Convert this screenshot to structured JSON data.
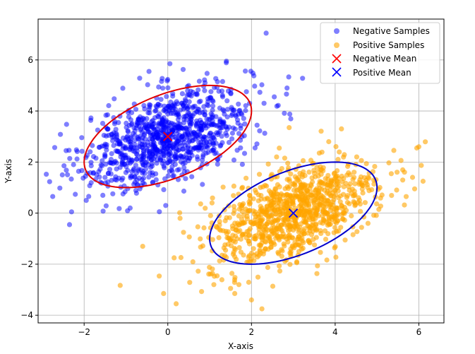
{
  "chart_data": {
    "type": "scatter",
    "title": "",
    "xlabel": "X-axis",
    "ylabel": "Y-axis",
    "xlim": [
      -3.1,
      6.6
    ],
    "ylim": [
      -4.3,
      7.6
    ],
    "xticks": [
      -2,
      0,
      2,
      4,
      6
    ],
    "yticks": [
      -4,
      -2,
      0,
      2,
      4,
      6
    ],
    "xtick_labels": [
      "−2",
      "0",
      "2",
      "4",
      "6"
    ],
    "ytick_labels": [
      "−4",
      "−2",
      "0",
      "2",
      "4",
      "6"
    ],
    "grid": true,
    "legend_position": "top-right",
    "series": [
      {
        "name": "Negative Samples",
        "marker": "circle",
        "color": "#0000ff",
        "alpha": 0.5,
        "distribution": {
          "mean": [
            0,
            3
          ],
          "cov": [
            [
              1,
              0.5
            ],
            [
              0.5,
              1
            ]
          ],
          "n": 1000
        },
        "outliers": [
          [
            2.35,
            7.05
          ],
          [
            1.4,
            5.95
          ],
          [
            -0.45,
            5.55
          ],
          [
            0.05,
            5.85
          ],
          [
            -2.35,
            -0.45
          ],
          [
            -2.3,
            0.05
          ],
          [
            -2.75,
            0.65
          ],
          [
            -0.05,
            0.3
          ],
          [
            2.85,
            4.9
          ],
          [
            -1.95,
            0.5
          ],
          [
            2.3,
            4.3
          ],
          [
            -0.9,
            0.2
          ]
        ]
      },
      {
        "name": "Positive Samples",
        "marker": "circle",
        "color": "#ffa500",
        "alpha": 0.6,
        "distribution": {
          "mean": [
            3,
            0
          ],
          "cov": [
            [
              1,
              0.5
            ],
            [
              0.5,
              1
            ]
          ],
          "n": 1000
        },
        "outliers": [
          [
            -0.1,
            -3.15
          ],
          [
            0.2,
            -3.55
          ],
          [
            2.25,
            -3.75
          ],
          [
            2.0,
            -3.4
          ],
          [
            -0.6,
            -1.3
          ],
          [
            0.15,
            -1.75
          ],
          [
            4.15,
            3.3
          ],
          [
            2.9,
            3.35
          ],
          [
            5.95,
            2.55
          ],
          [
            5.85,
            1.4
          ],
          [
            6.1,
            1.25
          ],
          [
            5.9,
            0.95
          ],
          [
            1.1,
            -2.8
          ],
          [
            1.5,
            -2.95
          ],
          [
            1.6,
            -3.15
          ],
          [
            2.6,
            2.2
          ],
          [
            6.0,
            2.6
          ],
          [
            1.7,
            -2.8
          ]
        ]
      },
      {
        "name": "Negative Mean",
        "marker": "x",
        "color": "#ff0000",
        "points": [
          [
            0,
            3
          ]
        ]
      },
      {
        "name": "Positive Mean",
        "marker": "x",
        "color": "#0000ff",
        "points": [
          [
            3,
            0
          ]
        ]
      }
    ],
    "ellipses": [
      {
        "center": [
          0,
          3
        ],
        "cov": [
          [
            1,
            0.5
          ],
          [
            0.5,
            1
          ]
        ],
        "n_std": 2,
        "color": "#e00000"
      },
      {
        "center": [
          3,
          0
        ],
        "cov": [
          [
            1,
            0.5
          ],
          [
            0.5,
            1
          ]
        ],
        "n_std": 2,
        "color": "#0000cc"
      }
    ]
  }
}
